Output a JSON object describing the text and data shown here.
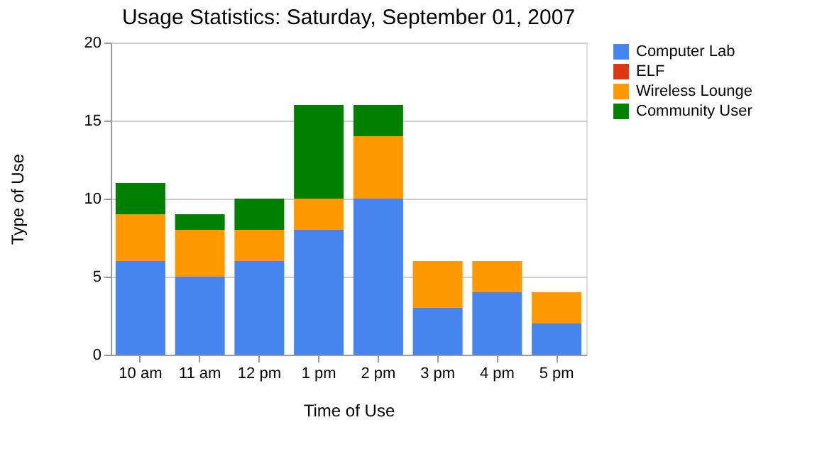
{
  "chart_data": {
    "type": "bar",
    "title": "Usage Statistics: Saturday, September 01, 2007",
    "xlabel": "Time of Use",
    "ylabel": "Type of Use",
    "categories": [
      "10 am",
      "11 am",
      "12 pm",
      "1 pm",
      "2 pm",
      "3 pm",
      "4 pm",
      "5 pm"
    ],
    "series": [
      {
        "name": "Computer Lab",
        "color": "#4684ee",
        "values": [
          6,
          5,
          6,
          8,
          10,
          3,
          4,
          2
        ]
      },
      {
        "name": "ELF",
        "color": "#dc3912",
        "values": [
          0,
          0,
          0,
          0,
          0,
          0,
          0,
          0
        ]
      },
      {
        "name": "Wireless Lounge",
        "color": "#ff9900",
        "values": [
          3,
          3,
          2,
          2,
          4,
          3,
          2,
          2
        ]
      },
      {
        "name": "Community User",
        "color": "#008000",
        "values": [
          2,
          1,
          2,
          6,
          2,
          0,
          0,
          0
        ]
      }
    ],
    "stacked": true,
    "ylim": [
      0,
      20
    ],
    "yticks": [
      0,
      5,
      10,
      15,
      20
    ],
    "grid": "y",
    "legend": "right"
  }
}
